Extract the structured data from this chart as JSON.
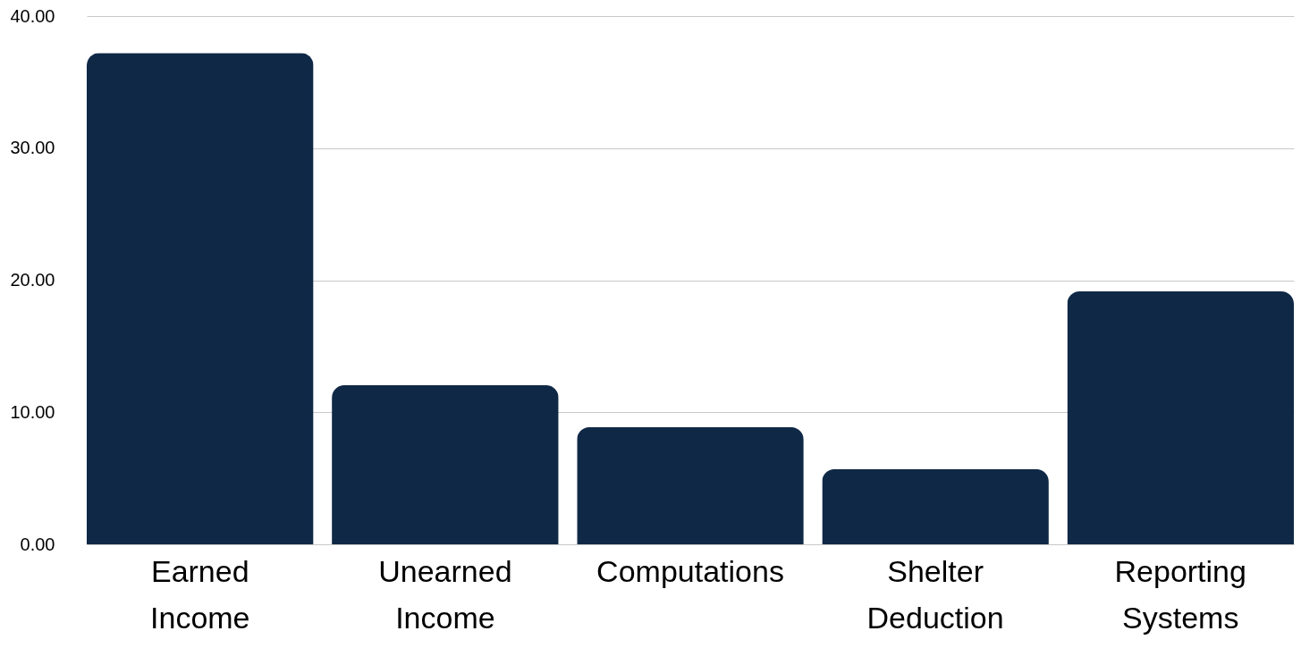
{
  "chart_data": {
    "type": "bar",
    "categories": [
      "Earned Income",
      "Unearned Income",
      "Computations",
      "Shelter Deduction",
      "Reporting Systems"
    ],
    "values": [
      37.2,
      12.05,
      8.87,
      5.69,
      19.15
    ],
    "color": "#0f2846",
    "ylim": [
      0,
      40
    ],
    "yticks": [
      {
        "value": 0,
        "label": "0.00"
      },
      {
        "value": 10,
        "label": "10.00"
      },
      {
        "value": 20,
        "label": "20.00"
      },
      {
        "value": 30,
        "label": "30.00"
      },
      {
        "value": 40,
        "label": "40.00"
      }
    ],
    "grid": "y"
  }
}
